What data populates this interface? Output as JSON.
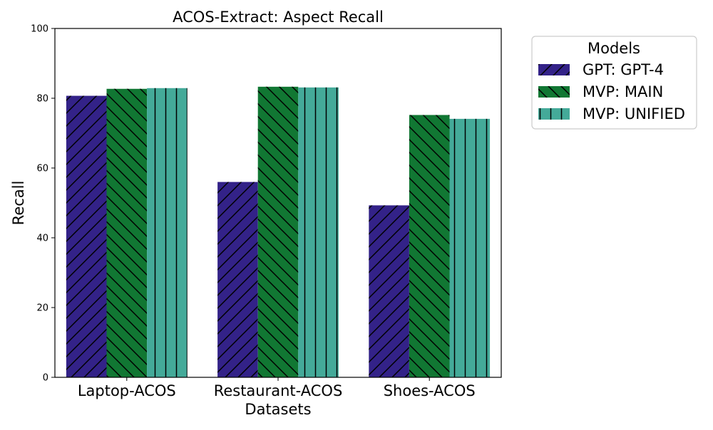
{
  "chart_data": {
    "type": "bar",
    "title": "ACOS-Extract: Aspect Recall",
    "xlabel": "Datasets",
    "ylabel": "Recall",
    "ylim": [
      0,
      100
    ],
    "yticks": [
      0,
      20,
      40,
      60,
      80,
      100
    ],
    "categories": [
      "Laptop-ACOS",
      "Restaurant-ACOS",
      "Shoes-ACOS"
    ],
    "series": [
      {
        "name": "GPT: GPT-4",
        "values": [
          80.7,
          56.0,
          49.3
        ],
        "color": "#332288",
        "hatch": "forward-diagonal"
      },
      {
        "name": "MVP: MAIN",
        "values": [
          82.7,
          83.3,
          75.2
        ],
        "color": "#117733",
        "hatch": "back-diagonal"
      },
      {
        "name": "MVP: UNIFIED",
        "values": [
          82.9,
          83.1,
          74.1
        ],
        "color": "#44AA99",
        "hatch": "vertical"
      }
    ],
    "legend": {
      "title": "Models",
      "placement": "outside-upper-right"
    },
    "grid": false
  }
}
